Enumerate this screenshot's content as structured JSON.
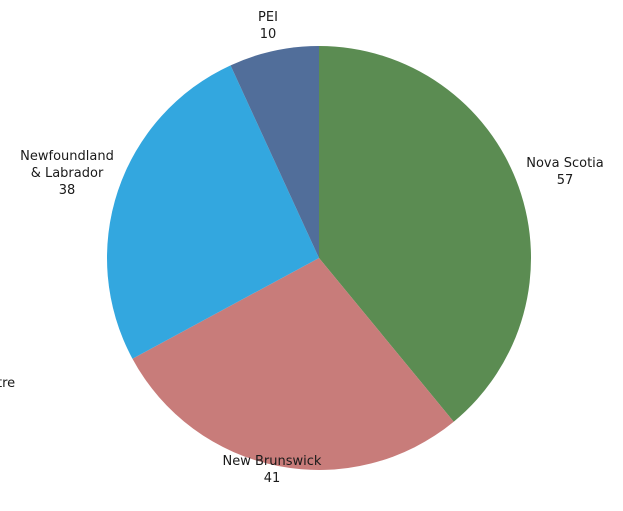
{
  "chart_data": {
    "type": "pie",
    "slices": [
      {
        "label_lines": [
          "Nova Scotia"
        ],
        "value": 57,
        "color": "#5b8c52"
      },
      {
        "label_lines": [
          "New Brunswick"
        ],
        "value": 41,
        "color": "#c87c7a"
      },
      {
        "label_lines": [
          "Newfoundland",
          "& Labrador"
        ],
        "value": 38,
        "color": "#33a7df"
      },
      {
        "label_lines": [
          "PEI"
        ],
        "value": 10,
        "color": "#516e9a"
      }
    ],
    "cut_off_label_fragment": "tre",
    "start_angle_deg": 0,
    "direction": "clockwise"
  }
}
